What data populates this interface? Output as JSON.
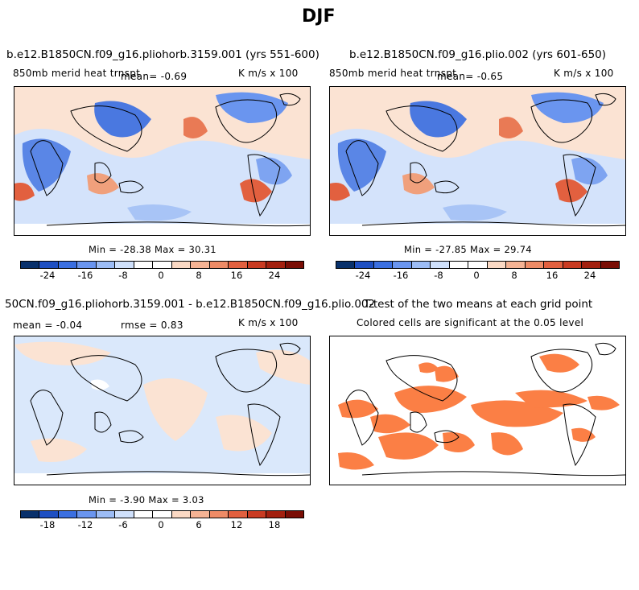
{
  "page": {
    "title": "DJF"
  },
  "panels": [
    {
      "id": "p1",
      "title": "b.e12.B1850CN.f09_g16.pliohorb.3159.001 (yrs 551-600)",
      "subtitle_left": "850mb merid heat trnspt",
      "mean_text": "mean=   -0.69",
      "units": "K m/s x 100",
      "min_max": "Min = -28.38 Max =  30.31",
      "colorbar_ticks": [
        "-24",
        "-16",
        "-8",
        "0",
        "8",
        "16",
        "24"
      ]
    },
    {
      "id": "p2",
      "title": "b.e12.B1850CN.f09_g16.plio.002 (yrs 601-650)",
      "subtitle_left": "850mb merid heat trnspt",
      "mean_text": "mean=   -0.65",
      "units": "K m/s x 100",
      "min_max": "Min = -27.85 Max =  29.74",
      "colorbar_ticks": [
        "-24",
        "-16",
        "-8",
        "0",
        "8",
        "16",
        "24"
      ]
    },
    {
      "id": "p3",
      "title": "50CN.f09_g16.pliohorb.3159.001 - b.e12.B1850CN.f09_g16.plio.002",
      "mean_text": "mean =   -0.04",
      "rmse_text": "rmse =   0.83",
      "units": "K m/s x 100",
      "min_max": "Min =  -3.90 Max =   3.03",
      "colorbar_ticks": [
        "-18",
        "-12",
        "-6",
        "0",
        "6",
        "12",
        "18"
      ]
    },
    {
      "id": "p4",
      "title": "T-test of the two means at each grid point",
      "subtitle": "Colored cells are significant at the 0.05 level"
    }
  ],
  "colors": {
    "colorbar": [
      "#08306b",
      "#1e4fc2",
      "#3b6fe0",
      "#6a95ef",
      "#9cbcf5",
      "#cfe0fb",
      "#ffffff",
      "#ffffff",
      "#fbd9c4",
      "#f5b394",
      "#ee8b66",
      "#e2603f",
      "#c93b22",
      "#a3200f",
      "#7a0d05"
    ],
    "significant": "#fb7f45",
    "ocean_neg_light": "#dae8fb",
    "land_outline": "#000000"
  }
}
